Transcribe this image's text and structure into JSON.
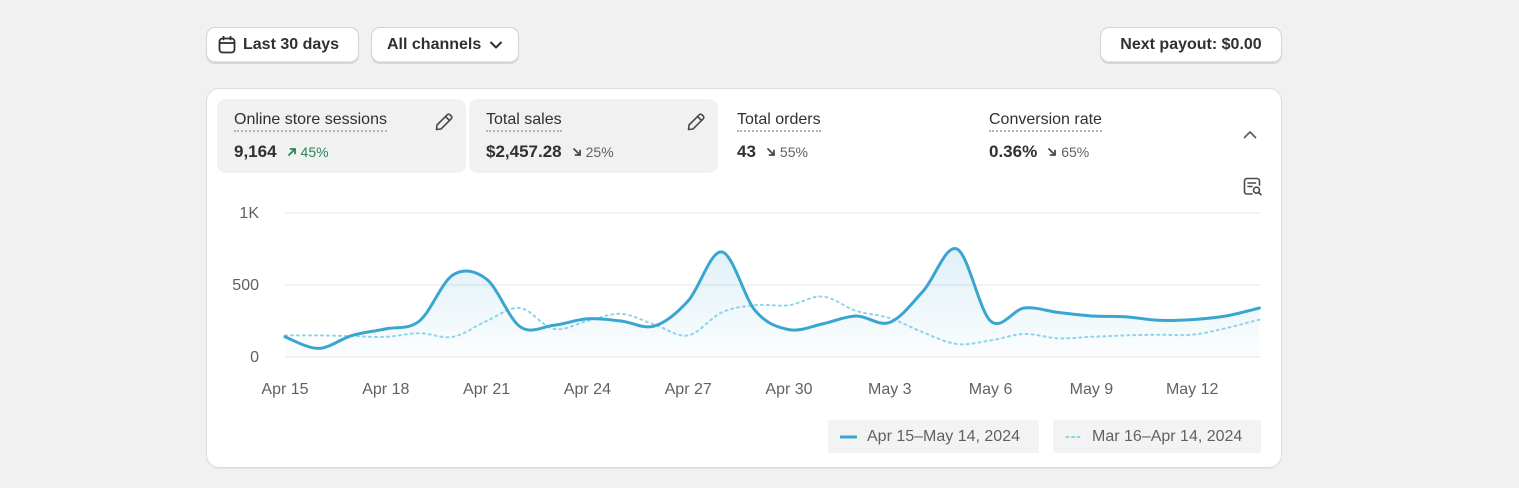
{
  "toolbar": {
    "date_label": "Last 30 days",
    "channels_label": "All channels",
    "payout_label": "Next payout: $0.00"
  },
  "metrics": [
    {
      "title": "Online store sessions",
      "value": "9,164",
      "change": "45%",
      "direction": "up",
      "active": true,
      "editable": true
    },
    {
      "title": "Total sales",
      "value": "$2,457.28",
      "change": "25%",
      "direction": "down",
      "active": true,
      "editable": true
    },
    {
      "title": "Total orders",
      "value": "43",
      "change": "55%",
      "direction": "down",
      "active": false,
      "editable": false
    },
    {
      "title": "Conversion rate",
      "value": "0.36%",
      "change": "65%",
      "direction": "down",
      "active": false,
      "editable": false
    }
  ],
  "icons": {
    "date": "calendar-icon",
    "channels": "chevron-down-icon",
    "edit": "pencil-icon",
    "collapse": "chevron-up-icon",
    "chart_tool": "chart-search-icon"
  },
  "colors": {
    "current_series": "#3aa6d0",
    "previous_series": "#8fd3e8",
    "positive": "#29845a"
  },
  "chart_data": {
    "type": "line",
    "x": [
      "Apr 15",
      "Apr 16",
      "Apr 17",
      "Apr 18",
      "Apr 19",
      "Apr 20",
      "Apr 21",
      "Apr 22",
      "Apr 23",
      "Apr 24",
      "Apr 25",
      "Apr 26",
      "Apr 27",
      "Apr 28",
      "Apr 29",
      "Apr 30",
      "May 1",
      "May 2",
      "May 3",
      "May 4",
      "May 5",
      "May 6",
      "May 7",
      "May 8",
      "May 9",
      "May 10",
      "May 11",
      "May 12",
      "May 13",
      "May 14"
    ],
    "x_tick_labels": [
      "Apr 15",
      "Apr 18",
      "Apr 21",
      "Apr 24",
      "Apr 27",
      "Apr 30",
      "May 3",
      "May 6",
      "May 9",
      "May 12"
    ],
    "y_tick_labels": [
      "1K",
      "500",
      "0"
    ],
    "ylim": [
      0,
      1000
    ],
    "grid": true,
    "legend_position": "bottom-right",
    "series": [
      {
        "name": "Apr 15–May 14, 2024",
        "style": "solid",
        "values": [
          140,
          60,
          150,
          195,
          250,
          570,
          540,
          210,
          220,
          265,
          250,
          215,
          390,
          730,
          320,
          190,
          230,
          285,
          240,
          460,
          750,
          250,
          340,
          310,
          285,
          280,
          255,
          260,
          285,
          340
        ]
      },
      {
        "name": "Mar 16–Apr 14, 2024",
        "style": "dotted",
        "values": [
          150,
          150,
          145,
          140,
          165,
          140,
          250,
          340,
          195,
          250,
          300,
          225,
          150,
          310,
          360,
          360,
          420,
          320,
          270,
          170,
          90,
          115,
          160,
          130,
          140,
          150,
          155,
          155,
          200,
          260
        ]
      }
    ]
  }
}
